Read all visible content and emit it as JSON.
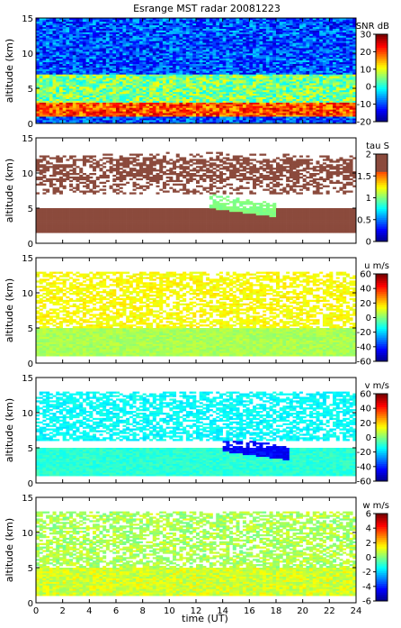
{
  "title": "Esrange MST radar 20081223",
  "xlabel": "time (UT)",
  "x_ticks": [
    "0",
    "2",
    "4",
    "6",
    "8",
    "10",
    "12",
    "14",
    "16",
    "18",
    "20",
    "22",
    "24"
  ],
  "y_ticks": [
    "0",
    "5",
    "10",
    "15"
  ],
  "ylabel": "altitude (km)",
  "colors": {
    "jet": [
      "#00008f",
      "#0000ff",
      "#0080ff",
      "#00ffff",
      "#80ff80",
      "#ffff00",
      "#ff8000",
      "#ff0000",
      "#800000"
    ],
    "tau_brown": "#8b4a3c"
  },
  "chart_data": [
    {
      "type": "heatmap",
      "title": "Esrange MST radar 20081223",
      "quantity": "SNR dB",
      "xlabel": "",
      "ylabel": "altitude (km)",
      "xlim": [
        0,
        24
      ],
      "ylim": [
        0,
        15
      ],
      "clim": [
        -20,
        30
      ],
      "colorbar_ticks": [
        "30",
        "20",
        "10",
        "0",
        "-10",
        "-20"
      ],
      "features": [
        {
          "description": "strong layer",
          "altitude_km": [
            1,
            3
          ],
          "value_db": 20
        },
        {
          "description": "moderate layer",
          "altitude_km": [
            3,
            7
          ],
          "value_db": 5
        },
        {
          "description": "upper background",
          "altitude_km": [
            7,
            15
          ],
          "value_db": -10
        }
      ]
    },
    {
      "type": "heatmap",
      "quantity": "tau S",
      "xlabel": "",
      "ylabel": "altitude (km)",
      "xlim": [
        0,
        24
      ],
      "ylim": [
        0,
        15
      ],
      "clim": [
        0,
        2
      ],
      "colorbar_ticks": [
        "2",
        "1.5",
        "1",
        "0.5",
        "0"
      ],
      "features": [
        {
          "description": "low layer",
          "altitude_km": [
            1.5,
            5
          ],
          "value_s": 2
        },
        {
          "description": "upper patches",
          "altitude_km": [
            9,
            12
          ],
          "value_s": 2
        },
        {
          "description": "descending layer",
          "time_ut": [
            13,
            18
          ],
          "altitude_km": [
            5,
            7
          ],
          "value_s": 1
        }
      ]
    },
    {
      "type": "heatmap",
      "quantity": "u m/s",
      "xlabel": "",
      "ylabel": "altitude (km)",
      "xlim": [
        0,
        24
      ],
      "ylim": [
        0,
        15
      ],
      "clim": [
        -60,
        60
      ],
      "colorbar_ticks": [
        "60",
        "40",
        "20",
        "0",
        "-20",
        "-40",
        "-60"
      ],
      "features": [
        {
          "description": "lower troposphere",
          "altitude_km": [
            1,
            5
          ],
          "value_ms": 5
        },
        {
          "description": "mid levels",
          "altitude_km": [
            5,
            13
          ],
          "value_ms": 15
        }
      ]
    },
    {
      "type": "heatmap",
      "quantity": "v m/s",
      "xlabel": "",
      "ylabel": "altitude (km)",
      "xlim": [
        0,
        24
      ],
      "ylim": [
        0,
        15
      ],
      "clim": [
        -60,
        60
      ],
      "colorbar_ticks": [
        "60",
        "40",
        "20",
        "0",
        "-20",
        "-40",
        "-60"
      ],
      "features": [
        {
          "description": "lower troposphere",
          "altitude_km": [
            1,
            5
          ],
          "value_ms": -10
        },
        {
          "description": "jet band",
          "time_ut": [
            14,
            19
          ],
          "altitude_km": [
            4.5,
            6.5
          ],
          "value_ms": -45
        },
        {
          "description": "upper levels",
          "altitude_km": [
            6,
            13
          ],
          "value_ms": -15
        }
      ]
    },
    {
      "type": "heatmap",
      "quantity": "w m/s",
      "xlabel": "time (UT)",
      "ylabel": "altitude (km)",
      "xlim": [
        0,
        24
      ],
      "ylim": [
        0,
        15
      ],
      "clim": [
        -6,
        6
      ],
      "colorbar_ticks": [
        "6",
        "4",
        "2",
        "0",
        "-2",
        "-4",
        "-6"
      ],
      "features": [
        {
          "description": "lower troposphere",
          "altitude_km": [
            1,
            5
          ],
          "value_ms": 1
        },
        {
          "description": "upper levels",
          "altitude_km": [
            5,
            13
          ],
          "value_ms": 0.5
        }
      ]
    }
  ]
}
